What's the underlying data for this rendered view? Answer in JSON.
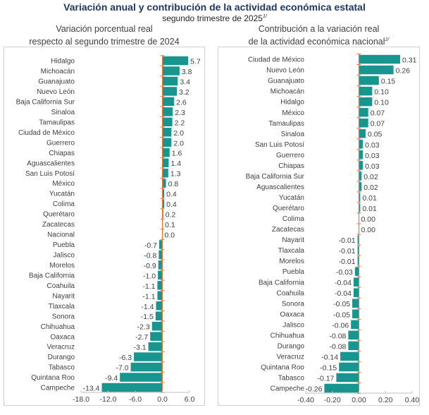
{
  "header": {
    "title": "Variación anual y contribución de la actividad económica estatal",
    "subtitle": "segundo trimestre de 2025",
    "subtitle_note": "1/"
  },
  "colors": {
    "bar": "#19958f",
    "axis": "#e07a3c",
    "title": "#1f3864",
    "text": "#404040"
  },
  "chart_data": [
    {
      "type": "bar",
      "orientation": "horizontal",
      "title": "Variación porcentual real",
      "title_line2": "respecto al segundo trimestre de 2024",
      "title_note": "",
      "xlabel": "",
      "ylabel": "",
      "xlim": [
        -18.0,
        6.0
      ],
      "xticks": [
        -18.0,
        -12.0,
        -6.0,
        0.0,
        6.0
      ],
      "xtick_labels": [
        "-18.0",
        "-12.0",
        "-6.0",
        "0.0",
        "6.0"
      ],
      "decimals": 1,
      "grid": false,
      "categories": [
        "Hidalgo",
        "Michoacán",
        "Guanajuato",
        "Nuevo León",
        "Baja California Sur",
        "Sinaloa",
        "Tamaulipas",
        "Ciudad de México",
        "Guerrero",
        "Chiapas",
        "Aguascalientes",
        "San Luis Potosí",
        "México",
        "Yucatán",
        "Colima",
        "Querétaro",
        "Zacatecas",
        "Nacional",
        "Puebla",
        "Jalisco",
        "Morelos",
        "Baja California",
        "Coahuila",
        "Nayarit",
        "Tlaxcala",
        "Sonora",
        "Chihuahua",
        "Oaxaca",
        "Veracruz",
        "Durango",
        "Tabasco",
        "Quintana Roo",
        "Campeche"
      ],
      "values": [
        5.7,
        3.8,
        3.4,
        3.2,
        2.6,
        2.3,
        2.2,
        2.0,
        2.0,
        1.6,
        1.4,
        1.3,
        0.8,
        0.4,
        0.4,
        0.2,
        0.1,
        0.0,
        -0.7,
        -0.8,
        -0.9,
        -1.0,
        -1.1,
        -1.1,
        -1.4,
        -1.5,
        -2.3,
        -2.7,
        -3.1,
        -6.3,
        -7.0,
        -9.4,
        -13.4
      ]
    },
    {
      "type": "bar",
      "orientation": "horizontal",
      "title": "Contribución a la variación real",
      "title_line2": "de la actividad económica nacional",
      "title_note": "2/",
      "xlabel": "",
      "ylabel": "",
      "xlim": [
        -0.4,
        0.4
      ],
      "xticks": [
        -0.4,
        -0.2,
        0.0,
        0.2,
        0.4
      ],
      "xtick_labels": [
        "-0.40",
        "-0.20",
        "0.00",
        "0.20",
        "0.40"
      ],
      "decimals": 2,
      "grid": false,
      "categories": [
        "Ciudad de México",
        "Nuevo León",
        "Guanajuato",
        "Michoacán",
        "Hidalgo",
        "México",
        "Tamaulipas",
        "Sinaloa",
        "San Luis Potosí",
        "Guerrero",
        "Chiapas",
        "Baja California Sur",
        "Aguascalientes",
        "Yucatán",
        "Querétaro",
        "Colima",
        "Zacatecas",
        "Nayarit",
        "Tlaxcala",
        "Morelos",
        "Puebla",
        "Baja California",
        "Coahuila",
        "Sonora",
        "Oaxaca",
        "Jalisco",
        "Chihuahua",
        "Durango",
        "Veracruz",
        "Quintana Roo",
        "Tabasco",
        "Campeche"
      ],
      "values": [
        0.31,
        0.26,
        0.15,
        0.1,
        0.1,
        0.07,
        0.07,
        0.05,
        0.03,
        0.03,
        0.03,
        0.02,
        0.02,
        0.01,
        0.01,
        0.0,
        0.0,
        -0.01,
        -0.01,
        -0.01,
        -0.03,
        -0.04,
        -0.04,
        -0.05,
        -0.05,
        -0.06,
        -0.08,
        -0.08,
        -0.14,
        -0.15,
        -0.17,
        -0.26
      ]
    }
  ]
}
